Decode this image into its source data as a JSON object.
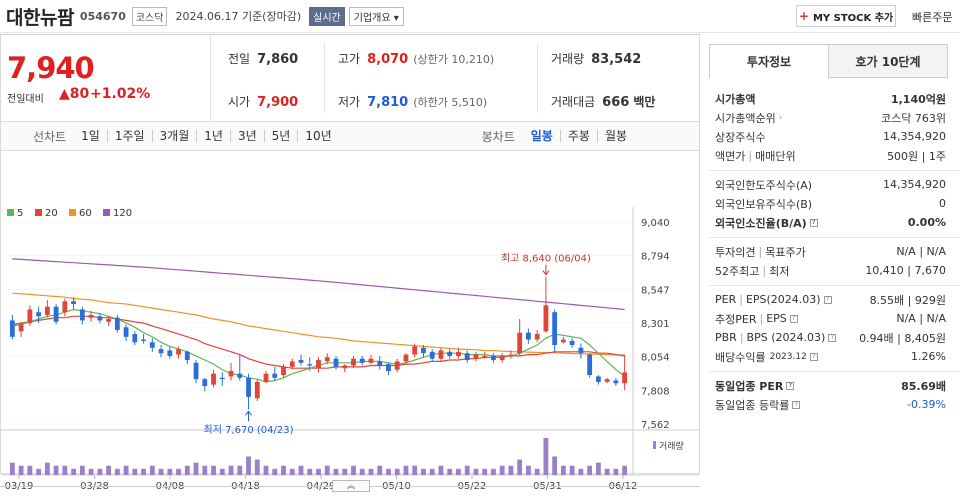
{
  "header": {
    "name": "대한뉴팜",
    "code": "054670",
    "market": "코스닥",
    "date_text": "2024.06.17  기준(장마감)",
    "live_label": "실시간",
    "corp_label": "기업개요",
    "mystock_label": "MY STOCK 추가",
    "quick_order": "빠른주문"
  },
  "price": {
    "current": "7,940",
    "change_label": "전일대비",
    "change": "80",
    "change_pct": "+1.02%"
  },
  "quotes": {
    "prev_label": "전일",
    "prev": "7,860",
    "high_label": "고가",
    "high": "8,070",
    "upper_limit": "(상한가 10,210)",
    "volume_label": "거래량",
    "volume": "83,542",
    "open_label": "시가",
    "open": "7,900",
    "low_label": "저가",
    "low": "7,810",
    "lower_limit": "(하한가 5,510)",
    "amount_label": "거래대금",
    "amount": "666",
    "amount_unit": "백만"
  },
  "periods": {
    "label": "선차트",
    "items": [
      "1일",
      "1주일",
      "3개월",
      "1년",
      "3년",
      "5년",
      "10년"
    ],
    "candle_label": "봉차트",
    "candle_items": [
      "일봉",
      "주봉",
      "월봉"
    ],
    "candle_selected": "일봉"
  },
  "chart_data": {
    "type": "candlestick",
    "legend": [
      {
        "name": "5",
        "color": "#5cb85c"
      },
      {
        "name": "20",
        "color": "#e0453a"
      },
      {
        "name": "60",
        "color": "#f0922b"
      },
      {
        "name": "120",
        "color": "#9b59b6"
      }
    ],
    "y_ticks": [
      "9,040",
      "8,794",
      "8,547",
      "8,301",
      "8,054",
      "7,808",
      "7,562"
    ],
    "ylim": [
      7562,
      9040
    ],
    "x_labels": [
      "03/19",
      "03/28",
      "04/08",
      "04/18",
      "04/29",
      "05/10",
      "05/22",
      "05/31",
      "06/12"
    ],
    "high_annotation": "최고 8,640 (06/04)",
    "low_annotation": "최저 7,670 (04/23)",
    "volume_label": "거래량",
    "candles": [
      [
        8320,
        8200,
        8360,
        8180
      ],
      [
        8240,
        8290,
        8310,
        8200
      ],
      [
        8300,
        8400,
        8430,
        8280
      ],
      [
        8380,
        8350,
        8420,
        8300
      ],
      [
        8360,
        8420,
        8470,
        8340
      ],
      [
        8420,
        8310,
        8440,
        8290
      ],
      [
        8380,
        8460,
        8480,
        8350
      ],
      [
        8460,
        8440,
        8490,
        8400
      ],
      [
        8400,
        8320,
        8420,
        8290
      ],
      [
        8340,
        8360,
        8390,
        8310
      ],
      [
        8350,
        8320,
        8370,
        8300
      ],
      [
        8310,
        8330,
        8350,
        8280
      ],
      [
        8340,
        8250,
        8360,
        8230
      ],
      [
        8270,
        8200,
        8290,
        8170
      ],
      [
        8220,
        8160,
        8240,
        8140
      ],
      [
        8180,
        8170,
        8220,
        8150
      ],
      [
        8160,
        8120,
        8190,
        8090
      ],
      [
        8110,
        8080,
        8140,
        8050
      ],
      [
        8100,
        8060,
        8130,
        8040
      ],
      [
        8070,
        8110,
        8130,
        8040
      ],
      [
        8090,
        8030,
        8100,
        8000
      ],
      [
        8010,
        7890,
        8030,
        7860
      ],
      [
        7890,
        7840,
        7900,
        7800
      ],
      [
        7850,
        7930,
        7960,
        7830
      ],
      [
        7900,
        7890,
        7940,
        7840
      ],
      [
        7910,
        7950,
        8010,
        7880
      ],
      [
        7930,
        7900,
        8070,
        7880
      ],
      [
        7900,
        7760,
        7930,
        7670
      ],
      [
        7750,
        7870,
        7890,
        7730
      ],
      [
        7870,
        7930,
        7950,
        7860
      ],
      [
        7930,
        7900,
        7980,
        7880
      ],
      [
        7920,
        7980,
        8000,
        7900
      ],
      [
        7980,
        8020,
        8040,
        7960
      ],
      [
        8030,
        8010,
        8070,
        7990
      ],
      [
        8000,
        7990,
        8050,
        7950
      ],
      [
        7970,
        8030,
        8050,
        7940
      ],
      [
        8020,
        8050,
        8080,
        8000
      ],
      [
        8040,
        7980,
        8060,
        7960
      ],
      [
        7970,
        7990,
        8000,
        7940
      ],
      [
        7990,
        8040,
        8060,
        7970
      ],
      [
        8040,
        8010,
        8060,
        7990
      ],
      [
        8010,
        8040,
        8070,
        8000
      ],
      [
        8020,
        7990,
        8060,
        7960
      ],
      [
        8000,
        7950,
        8010,
        7920
      ],
      [
        7960,
        8020,
        8040,
        7940
      ],
      [
        8020,
        8070,
        8080,
        8000
      ],
      [
        8070,
        8130,
        8150,
        8050
      ],
      [
        8120,
        8080,
        8140,
        8050
      ],
      [
        8090,
        8040,
        8110,
        8020
      ],
      [
        8040,
        8100,
        8120,
        8020
      ],
      [
        8090,
        8060,
        8110,
        8040
      ],
      [
        8060,
        8090,
        8120,
        8040
      ],
      [
        8080,
        8030,
        8100,
        8010
      ],
      [
        8040,
        8070,
        8090,
        8020
      ],
      [
        8050,
        8060,
        8090,
        8040
      ],
      [
        8060,
        8030,
        8080,
        8010
      ],
      [
        8030,
        8060,
        8080,
        8010
      ],
      [
        8060,
        8070,
        8100,
        8040
      ],
      [
        8080,
        8230,
        8330,
        8060
      ],
      [
        8230,
        8180,
        8260,
        8150
      ],
      [
        8180,
        8220,
        8250,
        8160
      ],
      [
        8240,
        8430,
        8640,
        8230
      ],
      [
        8380,
        8140,
        8400,
        8080
      ],
      [
        8160,
        8180,
        8200,
        8150
      ],
      [
        8170,
        8140,
        8190,
        8120
      ],
      [
        8120,
        8080,
        8150,
        8040
      ],
      [
        8070,
        7920,
        8080,
        7900
      ],
      [
        7910,
        7870,
        7920,
        7850
      ],
      [
        7870,
        7890,
        7900,
        7860
      ],
      [
        7880,
        7860,
        7900,
        7840
      ],
      [
        7860,
        7940,
        8070,
        7810
      ]
    ],
    "volumes": [
      4,
      3,
      3,
      2,
      4,
      3,
      3,
      2,
      3,
      2,
      2,
      3,
      2,
      3,
      2,
      2,
      3,
      2,
      2,
      2,
      3,
      4,
      3,
      3,
      2,
      3,
      3,
      6,
      5,
      3,
      2,
      3,
      2,
      3,
      2,
      2,
      3,
      2,
      2,
      3,
      2,
      2,
      3,
      2,
      2,
      3,
      3,
      2,
      2,
      3,
      2,
      2,
      3,
      2,
      2,
      2,
      3,
      3,
      5,
      3,
      2,
      12,
      6,
      3,
      3,
      2,
      3,
      4,
      2,
      2,
      3
    ],
    "ma5": [
      8280,
      8290,
      8310,
      8330,
      8350,
      8360,
      8380,
      8400,
      8390,
      8380,
      8370,
      8350,
      8330,
      8300,
      8270,
      8230,
      8200,
      8160,
      8130,
      8110,
      8090,
      8060,
      8030,
      8000,
      7960,
      7930,
      7920,
      7900,
      7890,
      7870,
      7880,
      7900,
      7930,
      7950,
      7970,
      7990,
      8010,
      8010,
      8010,
      8010,
      8020,
      8020,
      8020,
      8010,
      8000,
      8010,
      8030,
      8050,
      8070,
      8080,
      8080,
      8080,
      8070,
      8070,
      8070,
      8060,
      8060,
      8060,
      8080,
      8110,
      8140,
      8190,
      8220,
      8210,
      8200,
      8190,
      8140,
      8080,
      8020,
      7960,
      7910
    ],
    "ma20": [
      8290,
      8300,
      8310,
      8320,
      8330,
      8340,
      8340,
      8350,
      8350,
      8350,
      8340,
      8340,
      8330,
      8320,
      8310,
      8300,
      8280,
      8260,
      8240,
      8220,
      8200,
      8180,
      8150,
      8130,
      8110,
      8090,
      8070,
      8040,
      8020,
      8000,
      7990,
      7980,
      7970,
      7970,
      7970,
      7970,
      7970,
      7980,
      7980,
      7980,
      7980,
      7990,
      7990,
      7990,
      7990,
      8000,
      8000,
      8010,
      8020,
      8020,
      8030,
      8030,
      8040,
      8040,
      8050,
      8050,
      8050,
      8060,
      8060,
      8070,
      8070,
      8080,
      8090,
      8090,
      8090,
      8090,
      8090,
      8080,
      8080,
      8070,
      8060
    ],
    "ma60": [
      8520,
      8515,
      8510,
      8505,
      8500,
      8495,
      8490,
      8480,
      8475,
      8470,
      8460,
      8450,
      8445,
      8440,
      8430,
      8420,
      8410,
      8400,
      8390,
      8380,
      8370,
      8360,
      8345,
      8330,
      8320,
      8310,
      8295,
      8280,
      8270,
      8260,
      8250,
      8240,
      8230,
      8220,
      8210,
      8200,
      8195,
      8190,
      8180,
      8170,
      8165,
      8160,
      8155,
      8150,
      8145,
      8140,
      8135,
      8130,
      8125,
      8120,
      8115,
      8110,
      8108,
      8105,
      8100,
      8098,
      8095,
      8092,
      8090,
      8088,
      8086,
      8085,
      8083,
      8080,
      8078,
      8076,
      8074,
      8072,
      8070,
      8068,
      8066
    ],
    "ma120": [
      8770,
      8766,
      8762,
      8758,
      8754,
      8750,
      8746,
      8742,
      8738,
      8734,
      8730,
      8726,
      8722,
      8718,
      8714,
      8710,
      8705,
      8700,
      8695,
      8690,
      8685,
      8680,
      8675,
      8670,
      8665,
      8660,
      8655,
      8650,
      8645,
      8640,
      8635,
      8630,
      8625,
      8620,
      8615,
      8610,
      8604,
      8598,
      8592,
      8586,
      8580,
      8574,
      8568,
      8562,
      8556,
      8550,
      8544,
      8538,
      8532,
      8526,
      8520,
      8514,
      8508,
      8502,
      8496,
      8490,
      8484,
      8478,
      8472,
      8466,
      8460,
      8454,
      8448,
      8442,
      8436,
      8430,
      8424,
      8418,
      8412,
      8406,
      8400
    ]
  },
  "tabs": [
    "투자정보",
    "호가 10단계"
  ],
  "info": {
    "s1": [
      {
        "k": "시가총액",
        "v": "1,140억원",
        "bold": true
      },
      {
        "k": "시가총액순위",
        "v": "코스닥 763위",
        "arrow": true
      },
      {
        "k": "상장주식수",
        "v": "14,354,920"
      },
      {
        "k": "액면가",
        "k2": "매매단위",
        "v": "500원",
        "v2": "1주"
      }
    ],
    "s2": [
      {
        "k": "외국인한도주식수(A)",
        "v": "14,354,920"
      },
      {
        "k": "외국인보유주식수(B)",
        "v": "0"
      },
      {
        "k": "외국인소진율(B/A)",
        "v": "0.00%",
        "bold": true,
        "icon": true
      }
    ],
    "s3": [
      {
        "k": "투자의견",
        "k2": "목표주가",
        "v": "N/A",
        "v2": "N/A"
      },
      {
        "k": "52주최고",
        "k2": "최저",
        "v": "10,410",
        "v2": "7,670"
      }
    ],
    "s4": [
      {
        "k": "PER",
        "k2": "EPS(2024.03)",
        "v": "8.55배",
        "v2": "929원",
        "icon": true
      },
      {
        "k": "추정PER",
        "k2": "EPS",
        "v": "N/A",
        "v2": "N/A",
        "icon": true
      },
      {
        "k": "PBR",
        "k2": "BPS (2024.03)",
        "v": "0.94배",
        "v2": "8,405원",
        "icon": true
      },
      {
        "k": "배당수익률",
        "k3": "2023.12",
        "v": "1.26%",
        "icon": true
      }
    ],
    "s5": [
      {
        "k": "동일업종 PER",
        "v": "85.69배",
        "bold": true,
        "icon": true
      },
      {
        "k": "동일업종 등락률",
        "v": "-0.39%",
        "icon": true,
        "blue": true
      }
    ]
  }
}
